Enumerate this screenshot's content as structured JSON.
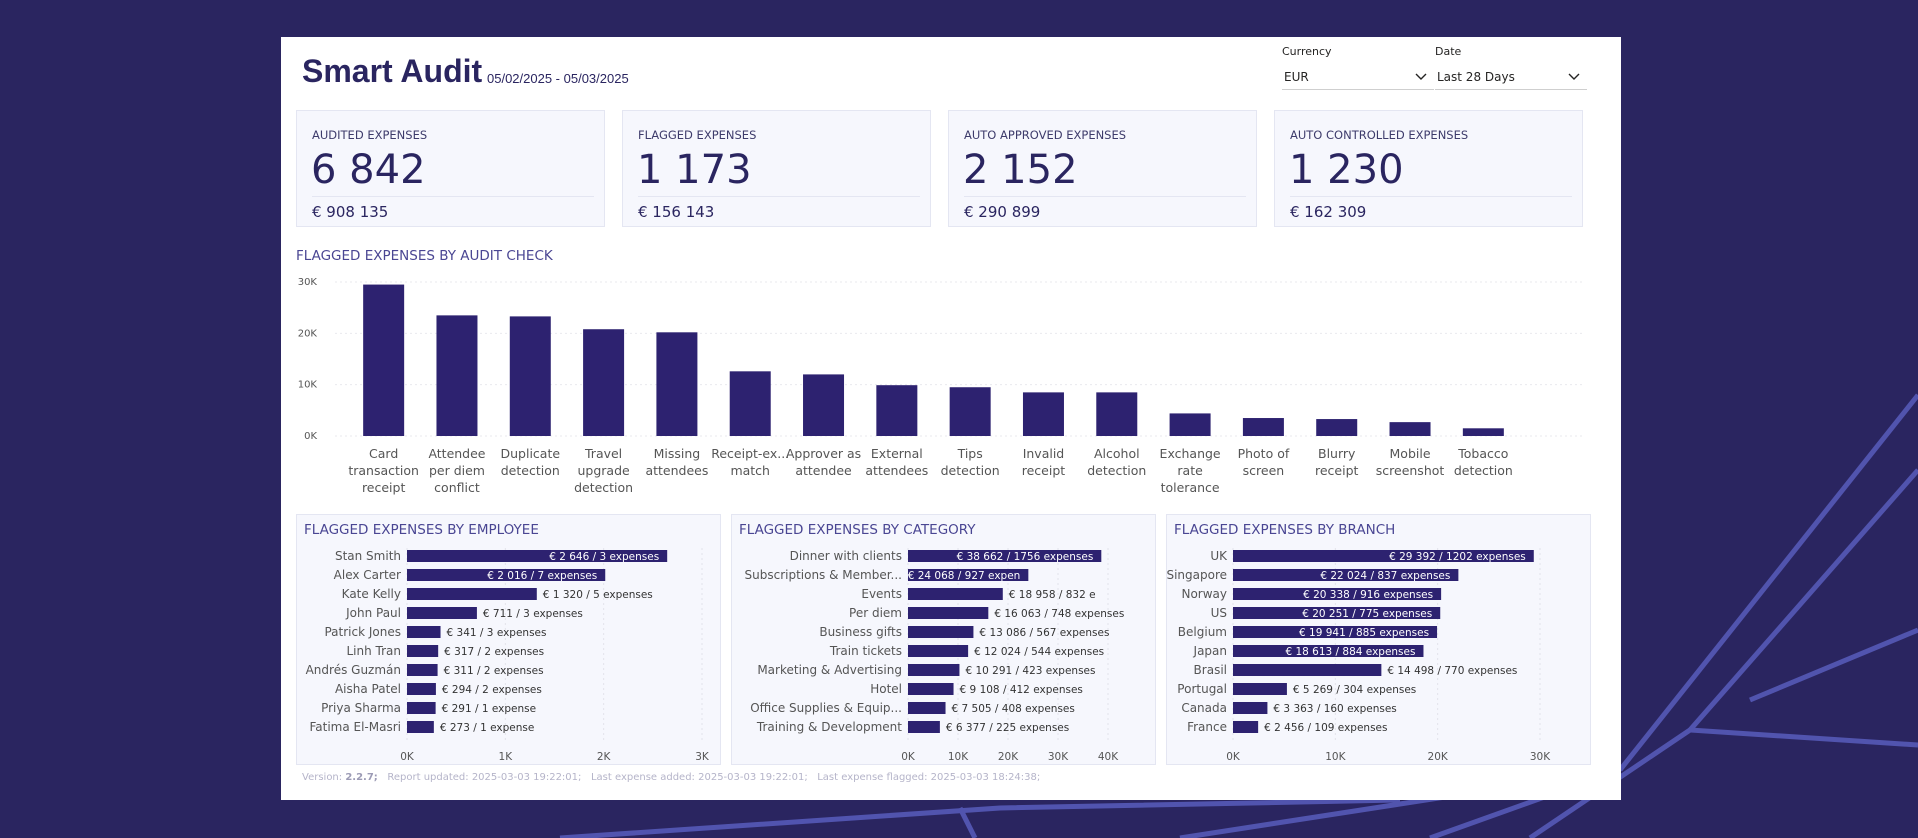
{
  "header": {
    "title": "Smart Audit",
    "date_range": "05/02/2025 - 05/03/2025"
  },
  "filters": [
    {
      "label": "Currency",
      "value": "EUR",
      "icon": "chevron-down-icon"
    },
    {
      "label": "Date",
      "value": "Last 28 Days",
      "icon": "chevron-down-icon"
    }
  ],
  "kpis": [
    {
      "label": "Audited Expenses",
      "count": "6 842",
      "amount": "€ 908 135"
    },
    {
      "label": "Flagged Expenses",
      "count": "1 173",
      "amount": "€ 156 143"
    },
    {
      "label": "Auto Approved Expenses",
      "count": "2 152",
      "amount": "€ 290 899"
    },
    {
      "label": "Auto Controlled Expenses",
      "count": "1 230",
      "amount": "€ 162 309"
    }
  ],
  "colors": {
    "bar": "#2d2270",
    "background": "#2a2560",
    "accent_line": "#7076d6",
    "panel": "#f6f7fd"
  },
  "chart_data": [
    {
      "type": "bar",
      "title": "Flagged expenses by audit check",
      "categories": [
        [
          "Card",
          "transaction",
          "receipt"
        ],
        [
          "Attendee",
          "per diem",
          "conflict"
        ],
        [
          "Duplicate",
          "detection"
        ],
        [
          "Travel",
          "upgrade",
          "detection"
        ],
        [
          "Missing",
          "attendees"
        ],
        [
          "Receipt-ex...",
          "match"
        ],
        [
          "Approver as",
          "attendee"
        ],
        [
          "External",
          "attendees"
        ],
        [
          "Tips",
          "detection"
        ],
        [
          "Invalid",
          "receipt"
        ],
        [
          "Alcohol",
          "detection"
        ],
        [
          "Exchange",
          "rate",
          "tolerance"
        ],
        [
          "Photo of",
          "screen"
        ],
        [
          "Blurry",
          "receipt"
        ],
        [
          "Mobile",
          "screenshot"
        ],
        [
          "Tobacco",
          "detection"
        ]
      ],
      "values": [
        29500,
        23500,
        23300,
        20800,
        20200,
        12600,
        12000,
        9900,
        9500,
        8500,
        8500,
        4400,
        3500,
        3300,
        2700,
        1500
      ],
      "yticks": [
        {
          "v": 0,
          "label": "0K"
        },
        {
          "v": 10000,
          "label": "10K"
        },
        {
          "v": 20000,
          "label": "20K"
        },
        {
          "v": 30000,
          "label": "30K"
        }
      ],
      "ylim": [
        0,
        30000
      ],
      "grid": true
    },
    {
      "type": "bar",
      "orientation": "horizontal",
      "title": "Flagged expenses by employee",
      "categories": [
        "Stan Smith",
        "Alex Carter",
        "Kate Kelly",
        "John Paul",
        "Patrick Jones",
        "Linh Tran",
        "Andrés Guzmán",
        "Aisha Patel",
        "Priya Sharma",
        "Fatima El-Masri"
      ],
      "values": [
        2646,
        2016,
        1320,
        711,
        341,
        317,
        311,
        294,
        291,
        273
      ],
      "labels": [
        "€ 2 646 / 3 expenses",
        "€ 2 016 / 7 expenses",
        "€ 1 320 / 5 expenses",
        "€ 711 / 3 expenses",
        "€ 341 / 3 expenses",
        "€ 317 / 2 expenses",
        "€ 311 / 2 expenses",
        "€ 294 / 2 expenses",
        "€ 291 / 1 expense",
        "€ 273 / 1 expense"
      ],
      "xticks": [
        {
          "v": 0,
          "label": "0K"
        },
        {
          "v": 1000,
          "label": "1K"
        },
        {
          "v": 2000,
          "label": "2K"
        },
        {
          "v": 3000,
          "label": "3K"
        }
      ],
      "xlim": [
        0,
        3000
      ],
      "grid": true
    },
    {
      "type": "bar",
      "orientation": "horizontal",
      "title": "Flagged expenses by category",
      "categories": [
        "Dinner with clients",
        "Subscriptions & Member...",
        "Events",
        "Per diem",
        "Business gifts",
        "Train tickets",
        "Marketing & Advertising",
        "Hotel",
        "Office Supplies & Equip...",
        "Training & Development"
      ],
      "values": [
        38662,
        24068,
        18958,
        16063,
        13086,
        12024,
        10291,
        9108,
        7505,
        6377
      ],
      "labels": [
        "€ 38 662 / 1756 expenses",
        "€ 24 068 / 927 expen",
        "€ 18 958 / 832 e",
        "€ 16 063 / 748 expenses",
        "€ 13 086 / 567 expenses",
        "€ 12 024 / 544 expenses",
        "€ 10 291 / 423 expenses",
        "€ 9 108 / 412 expenses",
        "€ 7 505 / 408 expenses",
        "€ 6 377 / 225 expenses"
      ],
      "xticks": [
        {
          "v": 0,
          "label": "0K"
        },
        {
          "v": 10000,
          "label": "10K"
        },
        {
          "v": 20000,
          "label": "20K"
        },
        {
          "v": 30000,
          "label": "30K"
        },
        {
          "v": 40000,
          "label": "40K"
        }
      ],
      "xlim": [
        0,
        40000
      ],
      "grid": true
    },
    {
      "type": "bar",
      "orientation": "horizontal",
      "title": "Flagged expenses by branch",
      "categories": [
        "UK",
        "Singapore",
        "Norway",
        "US",
        "Belgium",
        "Japan",
        "Brasil",
        "Portugal",
        "Canada",
        "France"
      ],
      "values": [
        29392,
        22024,
        20338,
        20251,
        19941,
        18613,
        14498,
        5269,
        3363,
        2456
      ],
      "labels": [
        "€ 29 392 / 1202 expenses",
        "€ 22 024 / 837 expenses",
        "€ 20 338 / 916 expenses",
        "€ 20 251 / 775 expenses",
        "€ 19 941 / 885 expenses",
        "€ 18 613 / 884 expenses",
        "€ 14 498 / 770 expenses",
        "€ 5 269 / 304 expenses",
        "€ 3 363 / 160 expenses",
        "€ 2 456 / 109 expenses"
      ],
      "xticks": [
        {
          "v": 0,
          "label": "0K"
        },
        {
          "v": 10000,
          "label": "10K"
        },
        {
          "v": 20000,
          "label": "20K"
        },
        {
          "v": 30000,
          "label": "30K"
        }
      ],
      "xlim": [
        0,
        30000
      ],
      "grid": true
    }
  ],
  "footer": {
    "version_label": "Version: ",
    "version": "2.2.7;",
    "updated": "Report updated: 2025-03-03 19:22:01;",
    "last_added": "Last expense added: 2025-03-03 19:22:01;",
    "last_flagged": "Last expense flagged: 2025-03-03 18:24:38;"
  }
}
